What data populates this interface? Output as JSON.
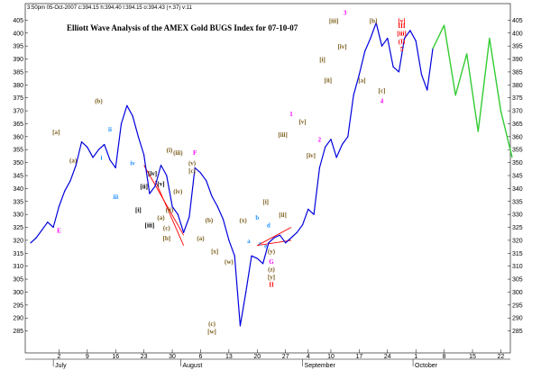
{
  "header": {
    "info": "3:50pm 05-Oct-2007 c:394.15 h:394.40 l:394.15 o:394.43 (+.37) v:11",
    "title": "Elliott Wave Analysis of the AMEX Gold BUGS Index for 07-10-07"
  },
  "colors": {
    "price": "#0000dd",
    "projection": "#33cc33",
    "trendline": "#ff0000",
    "grid": "#e0e0e0",
    "annotation": "#7a5c1a",
    "highlight": "#ff00ff",
    "blue_label": "#1e90ff",
    "red_label": "#ff0000"
  },
  "chart_data": {
    "type": "line",
    "title": "Elliott Wave Analysis of the AMEX Gold BUGS Index for 07-10-07",
    "xlabel": "",
    "ylabel": "",
    "ylim": [
      280,
      410
    ],
    "y_ticks": [
      285,
      290,
      295,
      300,
      305,
      310,
      315,
      320,
      325,
      330,
      335,
      340,
      345,
      350,
      355,
      360,
      365,
      370,
      375,
      380,
      385,
      390,
      395,
      400,
      405
    ],
    "x_day_ticks": [
      {
        "label": "2",
        "t": 5
      },
      {
        "label": "9",
        "t": 10
      },
      {
        "label": "16",
        "t": 15
      },
      {
        "label": "23",
        "t": 20
      },
      {
        "label": "30",
        "t": 25
      },
      {
        "label": "6",
        "t": 30
      },
      {
        "label": "13",
        "t": 35
      },
      {
        "label": "20",
        "t": 40
      },
      {
        "label": "27",
        "t": 45
      },
      {
        "label": "4",
        "t": 49
      },
      {
        "label": "10",
        "t": 53
      },
      {
        "label": "17",
        "t": 58
      },
      {
        "label": "24",
        "t": 63
      },
      {
        "label": "1",
        "t": 68
      },
      {
        "label": "8",
        "t": 73
      },
      {
        "label": "15",
        "t": 78
      },
      {
        "label": "22",
        "t": 83
      }
    ],
    "x_month_ticks": [
      {
        "label": "July",
        "t": 4
      },
      {
        "label": "August",
        "t": 26.5
      },
      {
        "label": "September",
        "t": 48
      },
      {
        "label": "October",
        "t": 67.5
      }
    ],
    "x_range": [
      0,
      85
    ],
    "series": [
      {
        "kind": "price",
        "x": [
          0,
          1,
          2,
          3,
          4,
          5,
          6,
          7,
          8,
          9,
          10,
          11,
          12,
          13,
          14,
          15,
          16,
          17,
          18,
          19,
          20,
          21,
          22,
          23,
          24,
          25,
          26,
          27,
          28,
          29,
          30,
          31,
          32,
          33,
          34,
          35,
          36,
          37,
          38,
          39,
          40,
          41,
          42,
          43,
          44,
          45,
          46,
          47,
          48,
          49,
          50,
          51,
          52,
          53,
          54,
          55,
          56,
          57,
          58,
          59,
          60,
          61,
          62,
          63,
          64,
          65,
          66,
          67,
          68,
          69,
          70,
          71
        ],
        "y": [
          319,
          321,
          324,
          327,
          325,
          333,
          339,
          343,
          349,
          358,
          356,
          352,
          355,
          357,
          351,
          348,
          365,
          372,
          368,
          360,
          353,
          338,
          341,
          349,
          345,
          333,
          330,
          323,
          329,
          348,
          346,
          343,
          337,
          333,
          328,
          320,
          314,
          287,
          300,
          314,
          313,
          311,
          319,
          321,
          322,
          319,
          321,
          323,
          326,
          332,
          330,
          348,
          356,
          359,
          352,
          357,
          360,
          376,
          384,
          393,
          398,
          404,
          395,
          398,
          387,
          385,
          398,
          401,
          397,
          384,
          378,
          394
        ]
      },
      {
        "kind": "projection",
        "x": [
          71,
          73,
          75,
          77,
          79,
          81,
          83,
          85
        ],
        "y": [
          394,
          403,
          376,
          392,
          362,
          398,
          370,
          352
        ]
      }
    ],
    "trendlines": [
      {
        "x": [
          20,
          27
        ],
        "y": [
          349,
          322
        ]
      },
      {
        "x": [
          22,
          27
        ],
        "y": [
          343,
          318
        ]
      },
      {
        "x": [
          40,
          46
        ],
        "y": [
          318,
          325
        ]
      },
      {
        "x": [
          40,
          46
        ],
        "y": [
          318,
          320
        ]
      }
    ],
    "annotations": [
      {
        "text": "[a]",
        "t": 4.5,
        "v": 361,
        "kind": "wave"
      },
      {
        "text": "(a)",
        "t": 7.5,
        "v": 350,
        "kind": "wave"
      },
      {
        "text": "(b)",
        "t": 12,
        "v": 373,
        "kind": "wave"
      },
      {
        "text": "ii",
        "t": 14,
        "v": 362,
        "kind": "blue"
      },
      {
        "text": "i",
        "t": 12.5,
        "v": 351,
        "kind": "blue"
      },
      {
        "text": "iii",
        "t": 15,
        "v": 336,
        "kind": "blue"
      },
      {
        "text": "iv",
        "t": 18,
        "v": 349,
        "kind": "blue"
      },
      {
        "text": "E",
        "t": 5,
        "v": 323,
        "kind": "magenta"
      },
      {
        "text": "[iv]",
        "t": 21.5,
        "v": 345,
        "kind": "black"
      },
      {
        "text": "[ii]",
        "t": 20,
        "v": 340,
        "kind": "black"
      },
      {
        "text": "[i]",
        "t": 19,
        "v": 331,
        "kind": "black"
      },
      {
        "text": "[v]",
        "t": 23,
        "v": 341,
        "kind": "black"
      },
      {
        "text": "[iii]",
        "t": 21,
        "v": 325,
        "kind": "black"
      },
      {
        "text": "(i)",
        "t": 24.5,
        "v": 354,
        "kind": "wave"
      },
      {
        "text": "(iii)",
        "t": 26,
        "v": 353,
        "kind": "wave"
      },
      {
        "text": "(ii)",
        "t": 24.5,
        "v": 331,
        "kind": "wave"
      },
      {
        "text": "(iv)",
        "t": 26,
        "v": 338,
        "kind": "wave"
      },
      {
        "text": "(v)",
        "t": 28.5,
        "v": 349,
        "kind": "wave"
      },
      {
        "text": "F",
        "t": 29,
        "v": 353,
        "kind": "magenta"
      },
      {
        "text": "[c]",
        "t": 28.5,
        "v": 346,
        "kind": "wave"
      },
      {
        "text": "(a)",
        "t": 23,
        "v": 328,
        "kind": "wave"
      },
      {
        "text": "(c)",
        "t": 24,
        "v": 324,
        "kind": "wave"
      },
      {
        "text": "[b]",
        "t": 24,
        "v": 320,
        "kind": "wave"
      },
      {
        "text": "(a)",
        "t": 30,
        "v": 320,
        "kind": "wave"
      },
      {
        "text": "(b)",
        "t": 31.5,
        "v": 327,
        "kind": "wave"
      },
      {
        "text": "[x]",
        "t": 32.5,
        "v": 315,
        "kind": "wave"
      },
      {
        "text": "(c)",
        "t": 32,
        "v": 287,
        "kind": "wave"
      },
      {
        "text": "[w]",
        "t": 32,
        "v": 284,
        "kind": "wave"
      },
      {
        "text": "(w)",
        "t": 35,
        "v": 311,
        "kind": "wave"
      },
      {
        "text": "(x)",
        "t": 37.5,
        "v": 327,
        "kind": "wave"
      },
      {
        "text": "a",
        "t": 38.5,
        "v": 319,
        "kind": "blue"
      },
      {
        "text": "b",
        "t": 40,
        "v": 328,
        "kind": "blue"
      },
      {
        "text": "c",
        "t": 40.5,
        "v": 318,
        "kind": "blue"
      },
      {
        "text": "d",
        "t": 42,
        "v": 325,
        "kind": "blue"
      },
      {
        "text": "e",
        "t": 41.5,
        "v": 317,
        "kind": "blue"
      },
      {
        "text": "(y)",
        "t": 42.5,
        "v": 315,
        "kind": "wave"
      },
      {
        "text": "G",
        "t": 42.5,
        "v": 311,
        "kind": "magenta"
      },
      {
        "text": "(z)",
        "t": 42.5,
        "v": 308,
        "kind": "wave"
      },
      {
        "text": "[y]",
        "t": 42.5,
        "v": 305,
        "kind": "wave"
      },
      {
        "text": "II",
        "t": 42.5,
        "v": 302,
        "kind": "red"
      },
      {
        "text": "[i]",
        "t": 41.5,
        "v": 334,
        "kind": "wave"
      },
      {
        "text": "[ii]",
        "t": 44.5,
        "v": 329,
        "kind": "wave"
      },
      {
        "text": "1",
        "t": 46,
        "v": 368,
        "kind": "magenta"
      },
      {
        "text": "[iii]",
        "t": 44.5,
        "v": 360,
        "kind": "wave"
      },
      {
        "text": "[v]",
        "t": 48,
        "v": 365,
        "kind": "wave"
      },
      {
        "text": "[iv]",
        "t": 49.5,
        "v": 352,
        "kind": "wave"
      },
      {
        "text": "2",
        "t": 51,
        "v": 358,
        "kind": "magenta"
      },
      {
        "text": "[i]",
        "t": 51.5,
        "v": 389,
        "kind": "wave"
      },
      {
        "text": "[ii]",
        "t": 52.5,
        "v": 381,
        "kind": "wave"
      },
      {
        "text": "3",
        "t": 55.5,
        "v": 407,
        "kind": "magenta"
      },
      {
        "text": "[iii]",
        "t": 53.5,
        "v": 404,
        "kind": "wave"
      },
      {
        "text": "[iv]",
        "t": 55,
        "v": 394,
        "kind": "wave"
      },
      {
        "text": "[a]",
        "t": 58.5,
        "v": 381,
        "kind": "wave"
      },
      {
        "text": "[b]",
        "t": 60.5,
        "v": 404,
        "kind": "wave"
      },
      {
        "text": "[c]",
        "t": 62,
        "v": 377,
        "kind": "wave"
      },
      {
        "text": "4",
        "t": 62,
        "v": 373,
        "kind": "magenta"
      },
      {
        "text": "[v]",
        "t": 65.5,
        "v": 404,
        "kind": "red"
      },
      {
        "text": "III",
        "t": 65.5,
        "v": 402,
        "kind": "red"
      },
      {
        "text": "[iii]",
        "t": 65.5,
        "v": 399,
        "kind": "red"
      },
      {
        "text": "(I)",
        "t": 65.5,
        "v": 396,
        "kind": "red"
      },
      {
        "text": "5",
        "t": 65.5,
        "v": 393,
        "kind": "red"
      }
    ],
    "legend_placement": "none",
    "grid": false
  }
}
